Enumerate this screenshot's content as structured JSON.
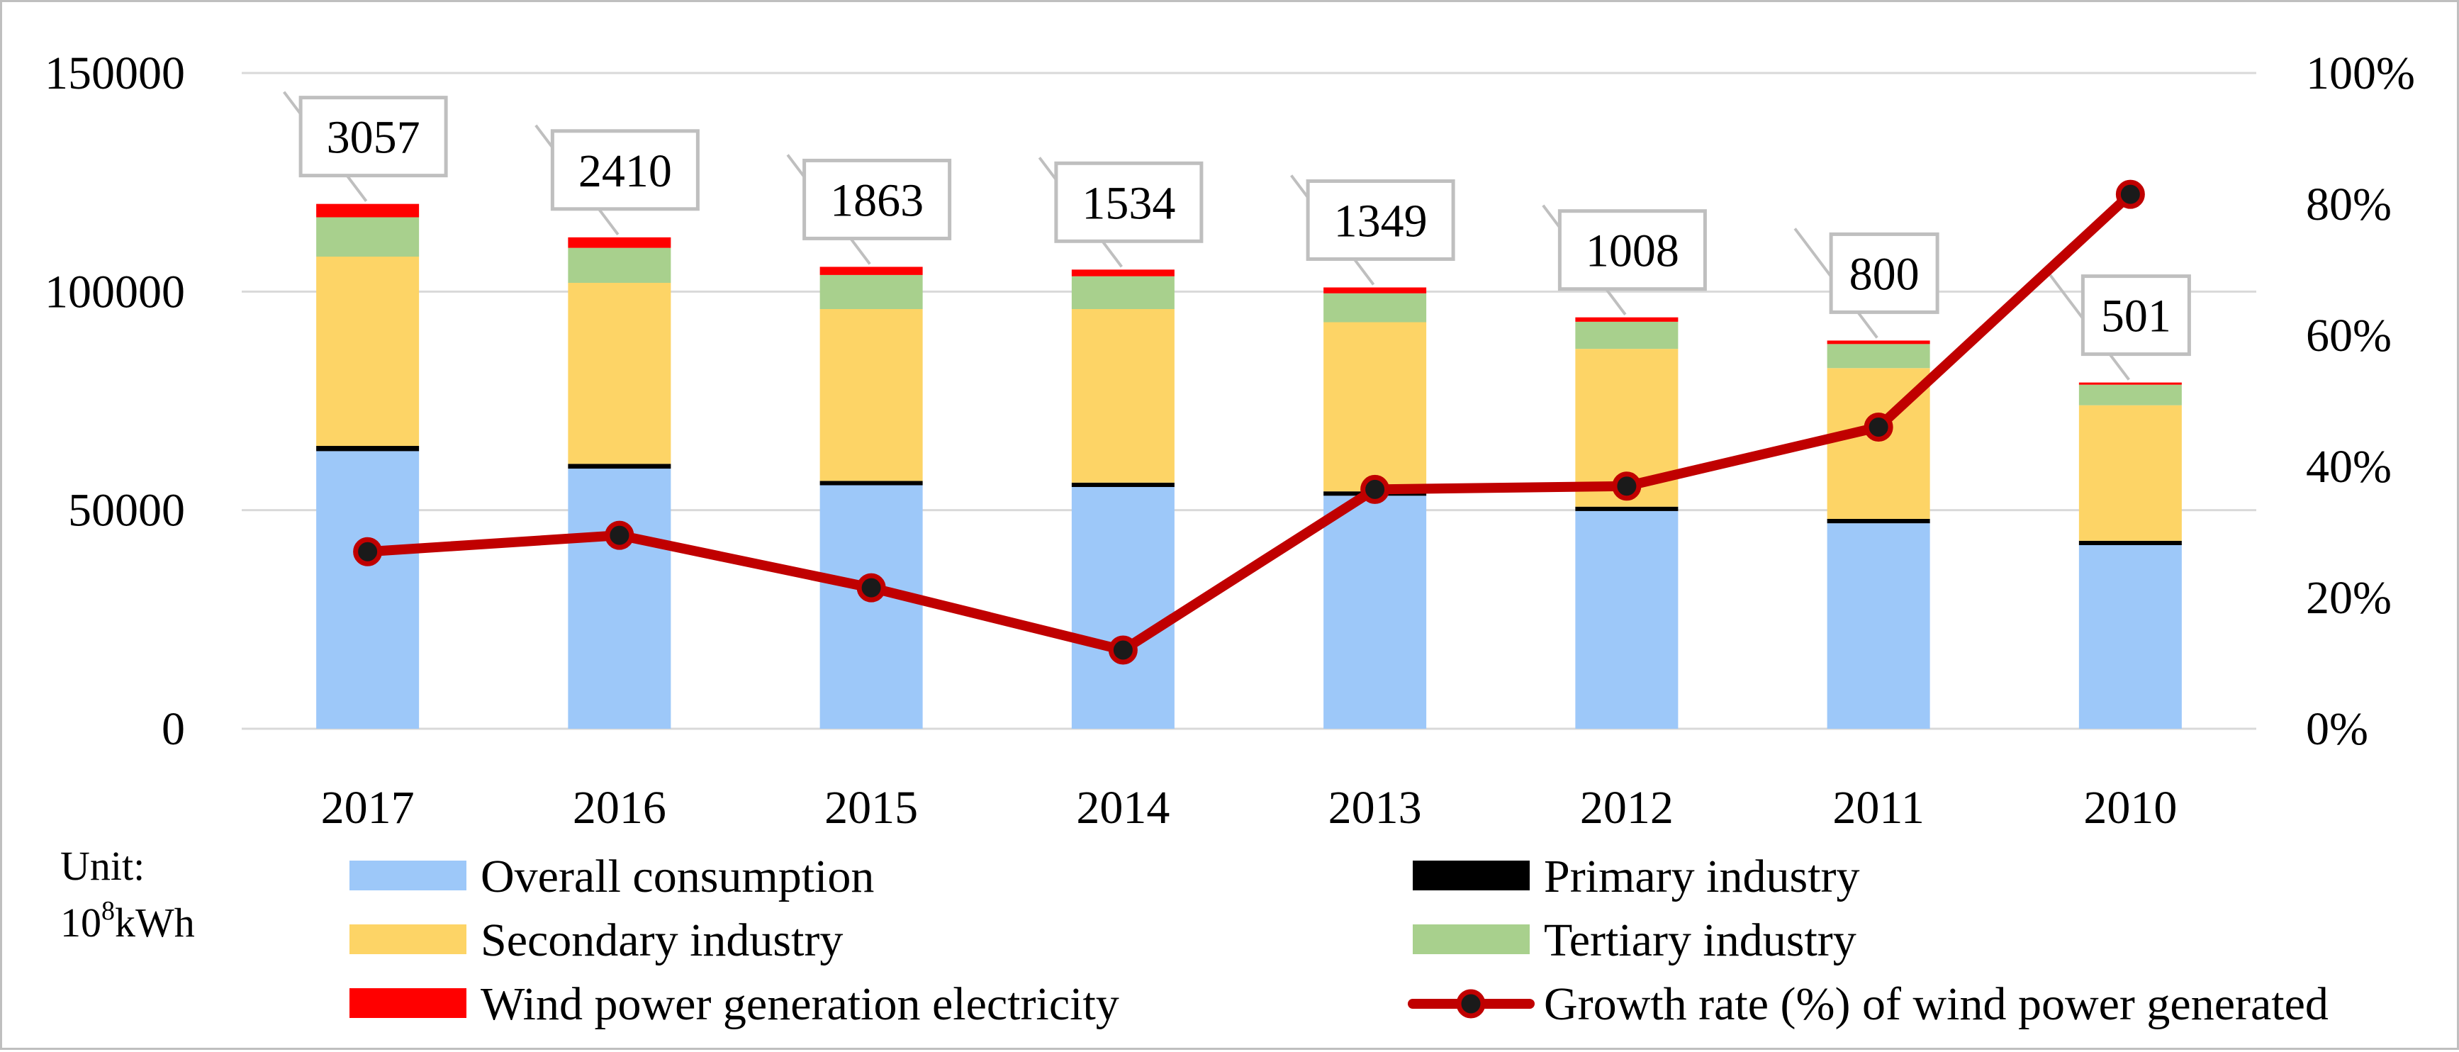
{
  "chart_data": {
    "type": "bar",
    "stacked": true,
    "categories": [
      "2017",
      "2016",
      "2015",
      "2014",
      "2013",
      "2012",
      "2011",
      "2010"
    ],
    "series": [
      {
        "name": "Overall consumption",
        "color": "#9dc8f9",
        "values": [
          63500,
          59500,
          55700,
          55300,
          53300,
          49800,
          47000,
          42000
        ]
      },
      {
        "name": "Primary industry",
        "color": "#000000",
        "values": [
          1200,
          1100,
          1000,
          1000,
          1000,
          1000,
          1000,
          1000
        ]
      },
      {
        "name": "Secondary industry",
        "color": "#fdd466",
        "values": [
          43300,
          41400,
          39300,
          39700,
          38700,
          36100,
          34500,
          31000
        ]
      },
      {
        "name": "Tertiary industry",
        "color": "#a8d08d",
        "values": [
          9000,
          8000,
          7800,
          7500,
          6600,
          6200,
          5500,
          4700
        ]
      },
      {
        "name": "Wind power generation electricity",
        "color": "#ff0000",
        "values": [
          3057,
          2410,
          1863,
          1534,
          1349,
          1008,
          800,
          501
        ]
      }
    ],
    "data_labels": [
      "3057",
      "2410",
      "1863",
      "1534",
      "1349",
      "1008",
      "800",
      "501"
    ],
    "line_series": {
      "name": "Growth rate (%) of wind power generated",
      "color": "#c00000",
      "axis": "right",
      "values": [
        27,
        29.5,
        21.5,
        12,
        36.5,
        37,
        46,
        81.5
      ]
    },
    "y_left": {
      "min": 0,
      "max": 150000,
      "ticks": [
        "0",
        "50000",
        "100000",
        "150000"
      ]
    },
    "y_right": {
      "min": 0,
      "max": 100,
      "ticks": [
        "0%",
        "20%",
        "40%",
        "60%",
        "80%",
        "100%"
      ]
    },
    "grid": true,
    "legend_position": "bottom",
    "unit_label": {
      "line1": "Unit:",
      "base": "10",
      "sup": "8",
      "rest": "kWh"
    }
  }
}
